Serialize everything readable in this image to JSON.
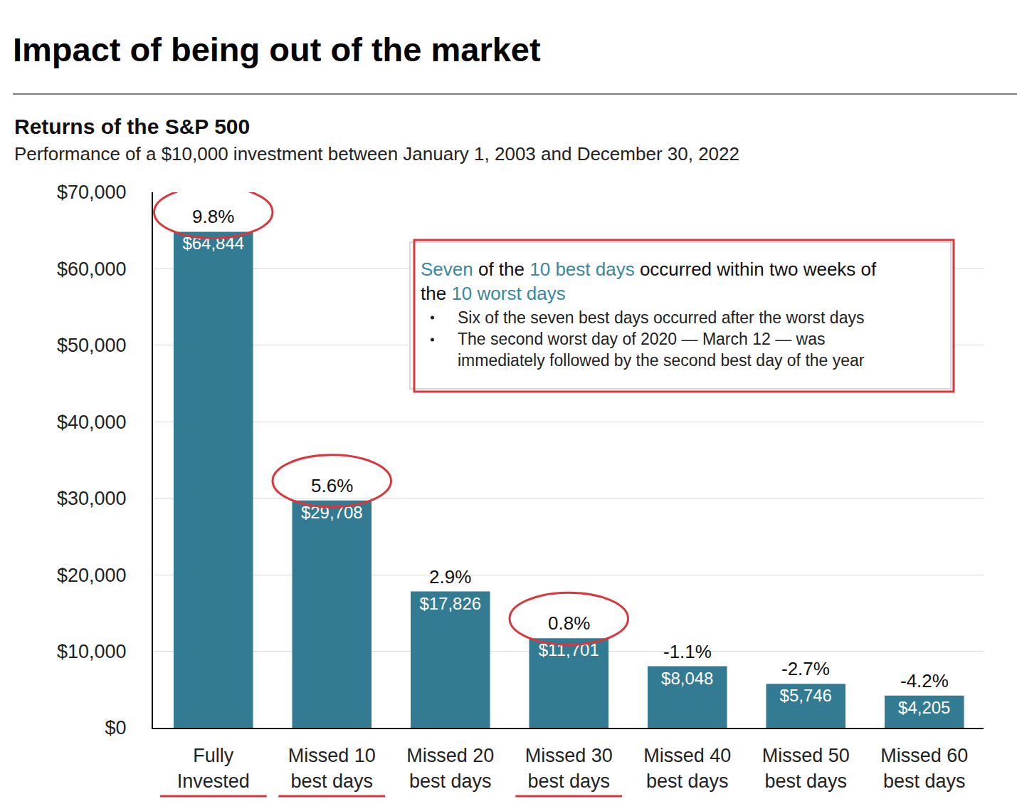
{
  "chart_data": {
    "type": "bar",
    "title": "Impact of being out of the market",
    "subtitle": "Returns of the S&P 500",
    "description": "Performance of a $10,000 investment between January 1, 2003 and December 30, 2022",
    "categories": [
      "Fully Invested",
      "Missed 10 best days",
      "Missed 20 best days",
      "Missed 30 best days",
      "Missed 40 best days",
      "Missed 50 best days",
      "Missed 60 best days"
    ],
    "values": [
      64844,
      29708,
      17826,
      11701,
      8048,
      5746,
      4205
    ],
    "value_labels": [
      "$64,844",
      "$29,708",
      "$17,826",
      "$11,701",
      "$8,048",
      "$5,746",
      "$4,205"
    ],
    "annual_returns": [
      9.8,
      5.6,
      2.9,
      0.8,
      -1.1,
      -2.7,
      -4.2
    ],
    "annual_return_labels": [
      "9.8%",
      "5.6%",
      "2.9%",
      "0.8%",
      "-1.1%",
      "-2.7%",
      "-4.2%"
    ],
    "color": "#337a93",
    "data_labels": true,
    "grid": true,
    "ylim": [
      0,
      70000
    ],
    "yticks": [
      {
        "value": 0,
        "label": "$0"
      },
      {
        "value": 10000,
        "label": "$10,000"
      },
      {
        "value": 20000,
        "label": "$20,000"
      },
      {
        "value": 30000,
        "label": "$30,000"
      },
      {
        "value": 40000,
        "label": "$40,000"
      },
      {
        "value": 50000,
        "label": "$50,000"
      },
      {
        "value": 60000,
        "label": "$60,000"
      },
      {
        "value": 70000,
        "label": "$70,000"
      }
    ],
    "annotation": {
      "heading_lines": [
        "Seven of the 10 best days occurred within two weeks of",
        "the 10 worst days"
      ],
      "highlights": [
        "Seven",
        "10 best days",
        "10 worst days"
      ],
      "bullets": [
        [
          "Six of the seven best days occurred after the worst days"
        ],
        [
          "The second worst day of 2020 — March 12 — was",
          "immediately followed by the second best day of the year"
        ]
      ]
    }
  }
}
